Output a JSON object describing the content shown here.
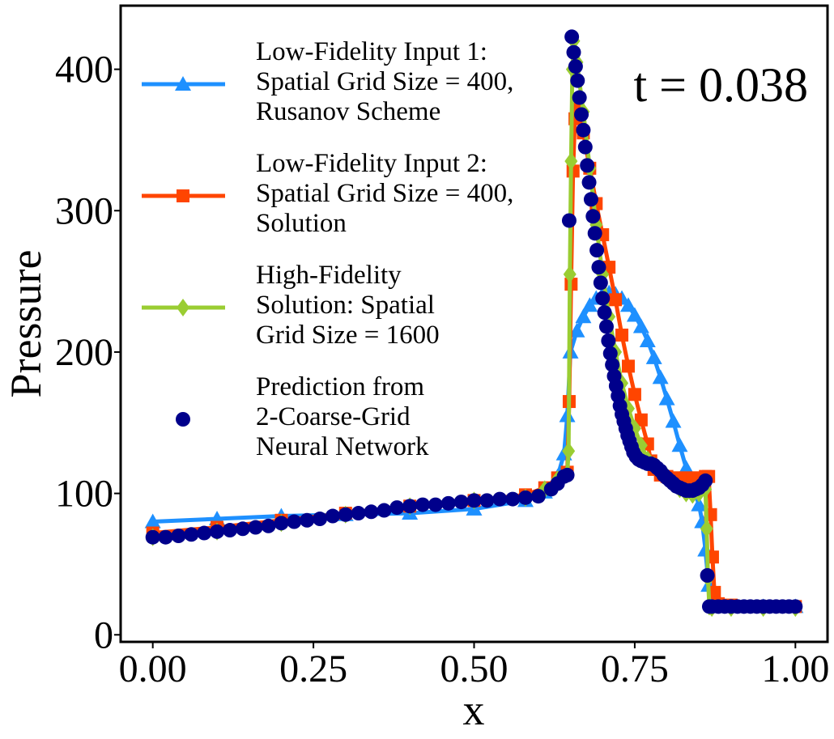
{
  "chart_data": {
    "type": "line",
    "xlabel": "x",
    "ylabel": "Pressure",
    "annotation": "t = 0.038",
    "xlim": [
      -0.05,
      1.05
    ],
    "ylim": [
      -5,
      445
    ],
    "x_ticks": [
      0,
      0.25,
      0.5,
      0.75,
      1.0
    ],
    "x_tick_labels": [
      "0.00",
      "0.25",
      "0.50",
      "0.75",
      "1.00"
    ],
    "y_ticks": [
      0,
      100,
      200,
      300,
      400
    ],
    "y_tick_labels": [
      "0",
      "100",
      "200",
      "300",
      "400"
    ],
    "grid": false,
    "legend_position": "top-left",
    "series": [
      {
        "name": "Low-Fidelity Input 1: Spatial Grid Size = 400, Rusanov Scheme",
        "legend_lines": [
          "Low-Fidelity Input 1:",
          "Spatial Grid Size = 400,",
          "Rusanov Scheme"
        ],
        "color": "#1e90ff",
        "marker": "triangle",
        "points": [
          [
            0.0,
            80
          ],
          [
            0.1,
            82
          ],
          [
            0.2,
            84
          ],
          [
            0.3,
            85
          ],
          [
            0.4,
            86
          ],
          [
            0.5,
            89
          ],
          [
            0.58,
            95
          ],
          [
            0.61,
            101
          ],
          [
            0.63,
            112
          ],
          [
            0.64,
            128
          ],
          [
            0.645,
            155
          ],
          [
            0.65,
            200
          ],
          [
            0.66,
            215
          ],
          [
            0.67,
            225
          ],
          [
            0.68,
            233
          ],
          [
            0.69,
            238
          ],
          [
            0.7,
            241
          ],
          [
            0.71,
            242
          ],
          [
            0.72,
            241
          ],
          [
            0.73,
            238
          ],
          [
            0.74,
            233
          ],
          [
            0.75,
            226
          ],
          [
            0.76,
            218
          ],
          [
            0.77,
            208
          ],
          [
            0.78,
            196
          ],
          [
            0.79,
            182
          ],
          [
            0.8,
            167
          ],
          [
            0.81,
            151
          ],
          [
            0.82,
            134
          ],
          [
            0.83,
            118
          ],
          [
            0.84,
            105
          ],
          [
            0.85,
            92
          ],
          [
            0.855,
            80
          ],
          [
            0.86,
            60
          ],
          [
            0.865,
            35
          ],
          [
            0.87,
            22
          ],
          [
            0.88,
            20
          ],
          [
            0.9,
            20
          ],
          [
            0.95,
            20
          ],
          [
            1.0,
            20
          ]
        ]
      },
      {
        "name": "Low-Fidelity Input 2: Spatial Grid Size = 400, Solution",
        "legend_lines": [
          "Low-Fidelity Input 2:",
          "Spatial Grid Size = 400,",
          "Solution"
        ],
        "color": "#ff4500",
        "marker": "square",
        "points": [
          [
            0.0,
            72
          ],
          [
            0.1,
            76
          ],
          [
            0.2,
            81
          ],
          [
            0.3,
            86
          ],
          [
            0.4,
            91
          ],
          [
            0.5,
            95
          ],
          [
            0.58,
            99
          ],
          [
            0.61,
            104
          ],
          [
            0.63,
            111
          ],
          [
            0.645,
            115
          ],
          [
            0.648,
            165
          ],
          [
            0.651,
            248
          ],
          [
            0.654,
            328
          ],
          [
            0.657,
            365
          ],
          [
            0.66,
            372
          ],
          [
            0.67,
            355
          ],
          [
            0.68,
            330
          ],
          [
            0.69,
            305
          ],
          [
            0.7,
            283
          ],
          [
            0.71,
            260
          ],
          [
            0.72,
            237
          ],
          [
            0.73,
            212
          ],
          [
            0.74,
            190
          ],
          [
            0.75,
            170
          ],
          [
            0.76,
            152
          ],
          [
            0.77,
            135
          ],
          [
            0.775,
            123
          ],
          [
            0.78,
            117
          ],
          [
            0.79,
            113
          ],
          [
            0.8,
            112
          ],
          [
            0.81,
            111
          ],
          [
            0.82,
            111
          ],
          [
            0.83,
            111
          ],
          [
            0.84,
            111
          ],
          [
            0.85,
            111
          ],
          [
            0.86,
            112
          ],
          [
            0.865,
            112
          ],
          [
            0.868,
            85
          ],
          [
            0.871,
            55
          ],
          [
            0.874,
            30
          ],
          [
            0.88,
            22
          ],
          [
            0.9,
            21
          ],
          [
            0.95,
            20
          ],
          [
            1.0,
            20
          ]
        ]
      },
      {
        "name": "High-Fidelity Solution: Spatial Grid Size = 1600",
        "legend_lines": [
          "High-Fidelity",
          "Solution: Spatial",
          "Grid Size = 1600"
        ],
        "color": "#9acd32",
        "marker": "diamond",
        "points": [
          [
            0.0,
            69
          ],
          [
            0.1,
            73
          ],
          [
            0.2,
            79
          ],
          [
            0.3,
            85
          ],
          [
            0.4,
            91
          ],
          [
            0.5,
            95
          ],
          [
            0.58,
            97
          ],
          [
            0.61,
            103
          ],
          [
            0.63,
            110
          ],
          [
            0.645,
            114
          ],
          [
            0.647,
            130
          ],
          [
            0.649,
            255
          ],
          [
            0.651,
            335
          ],
          [
            0.653,
            400
          ],
          [
            0.655,
            420
          ],
          [
            0.66,
            405
          ],
          [
            0.67,
            370
          ],
          [
            0.68,
            330
          ],
          [
            0.69,
            290
          ],
          [
            0.7,
            255
          ],
          [
            0.71,
            225
          ],
          [
            0.72,
            200
          ],
          [
            0.73,
            178
          ],
          [
            0.74,
            160
          ],
          [
            0.75,
            146
          ],
          [
            0.76,
            134
          ],
          [
            0.77,
            124
          ],
          [
            0.78,
            120
          ],
          [
            0.79,
            116
          ],
          [
            0.8,
            112
          ],
          [
            0.81,
            107
          ],
          [
            0.82,
            103
          ],
          [
            0.83,
            100
          ],
          [
            0.84,
            99
          ],
          [
            0.85,
            100
          ],
          [
            0.86,
            103
          ],
          [
            0.862,
            75
          ],
          [
            0.864,
            40
          ],
          [
            0.866,
            20
          ],
          [
            0.87,
            19
          ],
          [
            0.9,
            19
          ],
          [
            0.95,
            19
          ],
          [
            1.0,
            19
          ]
        ]
      },
      {
        "name": "Prediction from 2-Coarse-Grid Neural Network",
        "legend_lines": [
          "Prediction from",
          "2-Coarse-Grid",
          "Neural Network"
        ],
        "color": "#00008b",
        "marker": "circle",
        "points": [
          [
            0.0,
            69
          ],
          [
            0.02,
            69
          ],
          [
            0.04,
            70
          ],
          [
            0.06,
            71
          ],
          [
            0.08,
            72
          ],
          [
            0.1,
            73
          ],
          [
            0.12,
            74
          ],
          [
            0.14,
            75
          ],
          [
            0.16,
            76
          ],
          [
            0.18,
            77
          ],
          [
            0.2,
            79
          ],
          [
            0.22,
            80
          ],
          [
            0.24,
            81
          ],
          [
            0.26,
            82
          ],
          [
            0.28,
            84
          ],
          [
            0.3,
            85
          ],
          [
            0.32,
            86
          ],
          [
            0.34,
            87
          ],
          [
            0.36,
            88
          ],
          [
            0.38,
            90
          ],
          [
            0.4,
            91
          ],
          [
            0.42,
            92
          ],
          [
            0.44,
            92
          ],
          [
            0.46,
            93
          ],
          [
            0.48,
            94
          ],
          [
            0.5,
            95
          ],
          [
            0.52,
            95
          ],
          [
            0.54,
            96
          ],
          [
            0.56,
            96
          ],
          [
            0.58,
            97
          ],
          [
            0.6,
            98
          ],
          [
            0.62,
            103
          ],
          [
            0.63,
            107
          ],
          [
            0.64,
            112
          ],
          [
            0.645,
            113
          ],
          [
            0.648,
            293
          ],
          [
            0.652,
            423
          ],
          [
            0.655,
            412
          ],
          [
            0.658,
            402
          ],
          [
            0.661,
            392
          ],
          [
            0.664,
            380
          ],
          [
            0.667,
            368
          ],
          [
            0.67,
            357
          ],
          [
            0.673,
            345
          ],
          [
            0.676,
            332
          ],
          [
            0.679,
            320
          ],
          [
            0.682,
            308
          ],
          [
            0.685,
            296
          ],
          [
            0.688,
            284
          ],
          [
            0.691,
            272
          ],
          [
            0.694,
            260
          ],
          [
            0.697,
            249
          ],
          [
            0.7,
            238
          ],
          [
            0.703,
            228
          ],
          [
            0.706,
            218
          ],
          [
            0.709,
            208
          ],
          [
            0.712,
            199
          ],
          [
            0.715,
            191
          ],
          [
            0.718,
            183
          ],
          [
            0.721,
            176
          ],
          [
            0.724,
            169
          ],
          [
            0.727,
            162
          ],
          [
            0.73,
            156
          ],
          [
            0.733,
            151
          ],
          [
            0.736,
            146
          ],
          [
            0.739,
            141
          ],
          [
            0.742,
            137
          ],
          [
            0.745,
            133
          ],
          [
            0.748,
            129
          ],
          [
            0.752,
            126
          ],
          [
            0.756,
            124
          ],
          [
            0.76,
            123
          ],
          [
            0.765,
            122
          ],
          [
            0.77,
            121
          ],
          [
            0.775,
            121
          ],
          [
            0.78,
            120
          ],
          [
            0.785,
            118
          ],
          [
            0.79,
            116
          ],
          [
            0.795,
            113
          ],
          [
            0.8,
            111
          ],
          [
            0.805,
            109
          ],
          [
            0.81,
            107
          ],
          [
            0.815,
            105
          ],
          [
            0.82,
            104
          ],
          [
            0.825,
            103
          ],
          [
            0.83,
            102
          ],
          [
            0.835,
            102
          ],
          [
            0.84,
            102
          ],
          [
            0.845,
            103
          ],
          [
            0.85,
            104
          ],
          [
            0.855,
            106
          ],
          [
            0.86,
            109
          ],
          [
            0.863,
            42
          ],
          [
            0.866,
            20
          ],
          [
            0.87,
            20
          ],
          [
            0.88,
            20
          ],
          [
            0.89,
            20
          ],
          [
            0.9,
            20
          ],
          [
            0.91,
            20
          ],
          [
            0.92,
            20
          ],
          [
            0.93,
            20
          ],
          [
            0.94,
            20
          ],
          [
            0.95,
            20
          ],
          [
            0.96,
            20
          ],
          [
            0.97,
            20
          ],
          [
            0.98,
            20
          ],
          [
            0.99,
            20
          ],
          [
            1.0,
            20
          ]
        ]
      }
    ]
  }
}
